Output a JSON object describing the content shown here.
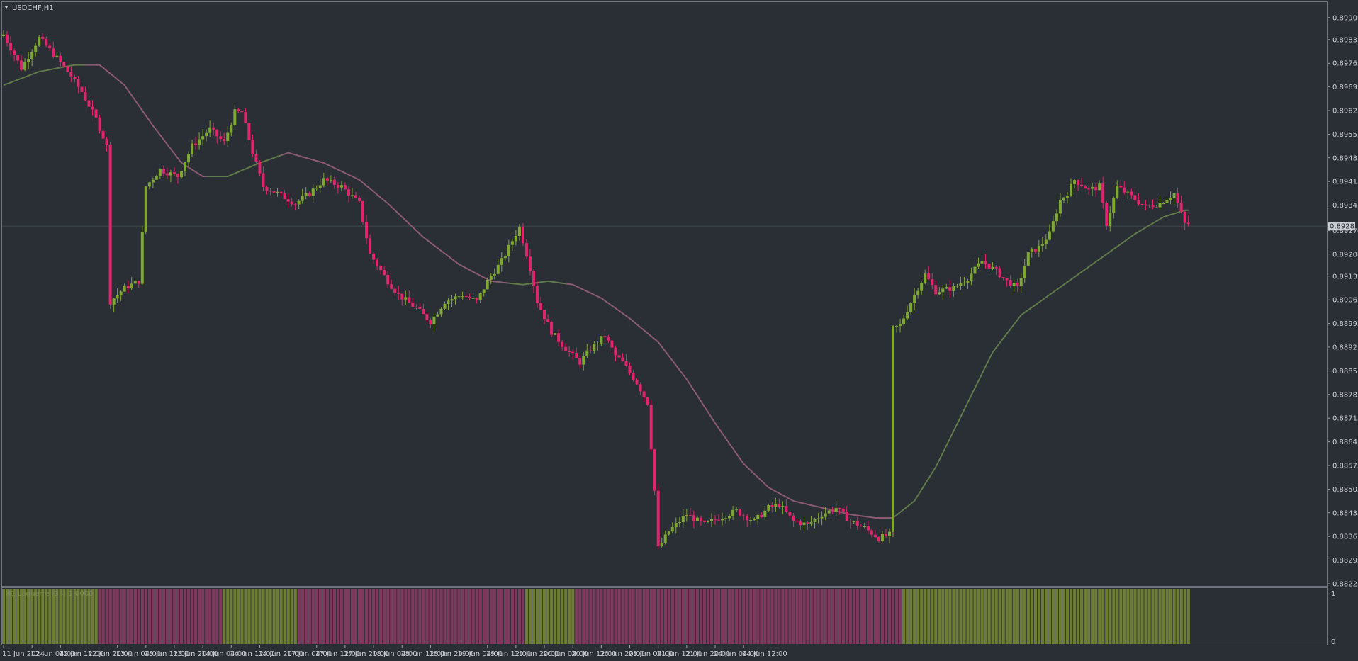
{
  "chart_data": {
    "type": "candlestick",
    "symbol_label": "USDCHF,H1",
    "timeframe": "H1",
    "y_axis": {
      "ticks": [
        "0.89900",
        "0.89835",
        "0.89765",
        "0.89695",
        "0.89625",
        "0.89555",
        "0.89485",
        "0.89415",
        "0.89345",
        "0.89270",
        "0.89200",
        "0.89135",
        "0.89065",
        "0.88995",
        "0.88925",
        "0.88855",
        "0.88785",
        "0.88715",
        "0.88645",
        "0.88575",
        "0.88505",
        "0.88435",
        "0.88365",
        "0.88295",
        "0.88225"
      ],
      "ylim": [
        0.88225,
        0.8991
      ]
    },
    "x_axis": {
      "ticks": [
        "11 Jun 2024",
        "12 Jun 04:00",
        "12 Jun 12:00",
        "12 Jun 20:00",
        "13 Jun 04:00",
        "13 Jun 12:00",
        "13 Jun 20:00",
        "14 Jun 04:00",
        "14 Jun 12:00",
        "14 Jun 20:00",
        "17 Jun 04:00",
        "17 Jun 12:00",
        "17 Jun 20:00",
        "18 Jun 04:00",
        "18 Jun 12:00",
        "18 Jun 20:00",
        "19 Jun 04:00",
        "19 Jun 12:00",
        "19 Jun 20:00",
        "20 Jun 04:00",
        "20 Jun 12:00",
        "20 Jun 20:00",
        "21 Jun 04:00",
        "21 Jun 12:00",
        "21 Jun 20:00",
        "24 Jun 04:00",
        "24 Jun 12:00"
      ]
    },
    "current_price": "0.89283",
    "colors": {
      "background": "#2a2e35",
      "bull": "#7fa832",
      "bear": "#e0256e",
      "ma_up": "#5f7a4a",
      "ma_down": "#8a5a72",
      "hist_up": "#6e7d35",
      "hist_down": "#7e3a5e",
      "axis_text": "#c8ccd2"
    },
    "anchors": [
      {
        "b": 0,
        "p": 0.8985
      },
      {
        "b": 5,
        "p": 0.8975
      },
      {
        "b": 10,
        "p": 0.8984
      },
      {
        "b": 15,
        "p": 0.8978
      },
      {
        "b": 18,
        "p": 0.8974
      },
      {
        "b": 22,
        "p": 0.8968
      },
      {
        "b": 26,
        "p": 0.896
      },
      {
        "b": 29,
        "p": 0.8952
      },
      {
        "b": 30,
        "p": 0.8906
      },
      {
        "b": 34,
        "p": 0.891
      },
      {
        "b": 38,
        "p": 0.8912
      },
      {
        "b": 40,
        "p": 0.894
      },
      {
        "b": 44,
        "p": 0.8945
      },
      {
        "b": 49,
        "p": 0.8943
      },
      {
        "b": 53,
        "p": 0.8952
      },
      {
        "b": 58,
        "p": 0.8957
      },
      {
        "b": 62,
        "p": 0.8953
      },
      {
        "b": 65,
        "p": 0.8962
      },
      {
        "b": 67,
        "p": 0.8962
      },
      {
        "b": 70,
        "p": 0.895
      },
      {
        "b": 73,
        "p": 0.894
      },
      {
        "b": 77,
        "p": 0.8938
      },
      {
        "b": 82,
        "p": 0.8935
      },
      {
        "b": 86,
        "p": 0.8938
      },
      {
        "b": 90,
        "p": 0.8942
      },
      {
        "b": 95,
        "p": 0.894
      },
      {
        "b": 100,
        "p": 0.8935
      },
      {
        "b": 103,
        "p": 0.892
      },
      {
        "b": 108,
        "p": 0.8912
      },
      {
        "b": 111,
        "p": 0.8908
      },
      {
        "b": 116,
        "p": 0.8904
      },
      {
        "b": 120,
        "p": 0.89
      },
      {
        "b": 124,
        "p": 0.8906
      },
      {
        "b": 129,
        "p": 0.8908
      },
      {
        "b": 133,
        "p": 0.8906
      },
      {
        "b": 136,
        "p": 0.8912
      },
      {
        "b": 140,
        "p": 0.8918
      },
      {
        "b": 145,
        "p": 0.8928
      },
      {
        "b": 148,
        "p": 0.8916
      },
      {
        "b": 150,
        "p": 0.8906
      },
      {
        "b": 154,
        "p": 0.8897
      },
      {
        "b": 158,
        "p": 0.8892
      },
      {
        "b": 162,
        "p": 0.8888
      },
      {
        "b": 165,
        "p": 0.8892
      },
      {
        "b": 169,
        "p": 0.8896
      },
      {
        "b": 172,
        "p": 0.889
      },
      {
        "b": 174,
        "p": 0.8888
      },
      {
        "b": 178,
        "p": 0.8882
      },
      {
        "b": 181,
        "p": 0.8876
      },
      {
        "b": 183,
        "p": 0.885
      },
      {
        "b": 184,
        "p": 0.8833
      },
      {
        "b": 187,
        "p": 0.8838
      },
      {
        "b": 192,
        "p": 0.8843
      },
      {
        "b": 197,
        "p": 0.884
      },
      {
        "b": 201,
        "p": 0.8842
      },
      {
        "b": 206,
        "p": 0.8844
      },
      {
        "b": 211,
        "p": 0.8841
      },
      {
        "b": 215,
        "p": 0.8845
      },
      {
        "b": 218,
        "p": 0.8846
      },
      {
        "b": 222,
        "p": 0.8841
      },
      {
        "b": 226,
        "p": 0.884
      },
      {
        "b": 230,
        "p": 0.8843
      },
      {
        "b": 234,
        "p": 0.8845
      },
      {
        "b": 238,
        "p": 0.8841
      },
      {
        "b": 242,
        "p": 0.8839
      },
      {
        "b": 246,
        "p": 0.8836
      },
      {
        "b": 249,
        "p": 0.8837
      },
      {
        "b": 250,
        "p": 0.8898
      },
      {
        "b": 252,
        "p": 0.8899
      },
      {
        "b": 256,
        "p": 0.8908
      },
      {
        "b": 259,
        "p": 0.8914
      },
      {
        "b": 262,
        "p": 0.8909
      },
      {
        "b": 267,
        "p": 0.891
      },
      {
        "b": 271,
        "p": 0.8913
      },
      {
        "b": 275,
        "p": 0.8918
      },
      {
        "b": 279,
        "p": 0.8915
      },
      {
        "b": 282,
        "p": 0.8912
      },
      {
        "b": 285,
        "p": 0.891
      },
      {
        "b": 288,
        "p": 0.892
      },
      {
        "b": 291,
        "p": 0.8922
      },
      {
        "b": 294,
        "p": 0.8926
      },
      {
        "b": 297,
        "p": 0.8936
      },
      {
        "b": 299,
        "p": 0.8938
      },
      {
        "b": 301,
        "p": 0.8942
      },
      {
        "b": 305,
        "p": 0.8939
      },
      {
        "b": 308,
        "p": 0.894
      },
      {
        "b": 310,
        "p": 0.8929
      },
      {
        "b": 313,
        "p": 0.894
      },
      {
        "b": 317,
        "p": 0.8937
      },
      {
        "b": 321,
        "p": 0.8934
      },
      {
        "b": 325,
        "p": 0.8935
      },
      {
        "b": 329,
        "p": 0.8938
      },
      {
        "b": 332,
        "p": 0.8929
      }
    ],
    "ma_anchors": [
      {
        "b": 0,
        "p": 0.897
      },
      {
        "b": 10,
        "p": 0.8974
      },
      {
        "b": 20,
        "p": 0.8976
      },
      {
        "b": 27,
        "p": 0.8976
      },
      {
        "b": 34,
        "p": 0.897
      },
      {
        "b": 42,
        "p": 0.8958
      },
      {
        "b": 50,
        "p": 0.8947
      },
      {
        "b": 56,
        "p": 0.8943
      },
      {
        "b": 63,
        "p": 0.8943
      },
      {
        "b": 72,
        "p": 0.8947
      },
      {
        "b": 80,
        "p": 0.895
      },
      {
        "b": 90,
        "p": 0.8947
      },
      {
        "b": 100,
        "p": 0.8942
      },
      {
        "b": 108,
        "p": 0.8935
      },
      {
        "b": 118,
        "p": 0.8925
      },
      {
        "b": 128,
        "p": 0.8917
      },
      {
        "b": 137,
        "p": 0.8912
      },
      {
        "b": 146,
        "p": 0.8911
      },
      {
        "b": 153,
        "p": 0.8912
      },
      {
        "b": 160,
        "p": 0.8911
      },
      {
        "b": 168,
        "p": 0.8907
      },
      {
        "b": 176,
        "p": 0.8901
      },
      {
        "b": 184,
        "p": 0.8894
      },
      {
        "b": 192,
        "p": 0.8883
      },
      {
        "b": 200,
        "p": 0.887
      },
      {
        "b": 208,
        "p": 0.8858
      },
      {
        "b": 215,
        "p": 0.8851
      },
      {
        "b": 222,
        "p": 0.8847
      },
      {
        "b": 230,
        "p": 0.8845
      },
      {
        "b": 238,
        "p": 0.8843
      },
      {
        "b": 245,
        "p": 0.8842
      },
      {
        "b": 250,
        "p": 0.8842
      },
      {
        "b": 256,
        "p": 0.8847
      },
      {
        "b": 262,
        "p": 0.8857
      },
      {
        "b": 270,
        "p": 0.8874
      },
      {
        "b": 278,
        "p": 0.8891
      },
      {
        "b": 286,
        "p": 0.8902
      },
      {
        "b": 294,
        "p": 0.8908
      },
      {
        "b": 302,
        "p": 0.8914
      },
      {
        "b": 310,
        "p": 0.892
      },
      {
        "b": 318,
        "p": 0.8926
      },
      {
        "b": 326,
        "p": 0.8931
      },
      {
        "b": 332,
        "p": 0.8933
      }
    ],
    "ma_color_switch_bars": [
      {
        "from": 0,
        "to": 23,
        "dir": "up"
      },
      {
        "from": 23,
        "to": 57,
        "dir": "down"
      },
      {
        "from": 57,
        "to": 78,
        "dir": "up"
      },
      {
        "from": 78,
        "to": 142,
        "dir": "down"
      },
      {
        "from": 142,
        "to": 158,
        "dir": "up"
      },
      {
        "from": 158,
        "to": 250,
        "dir": "down"
      },
      {
        "from": 250,
        "to": 333,
        "dir": "up"
      }
    ],
    "indicator": {
      "label": "H1 Laguerre (34) 1.0000",
      "ylim_labels": [
        "1",
        "0"
      ],
      "segments": [
        {
          "from": 0,
          "to": 27,
          "dir": "up"
        },
        {
          "from": 27,
          "to": 62,
          "dir": "down"
        },
        {
          "from": 62,
          "to": 83,
          "dir": "up"
        },
        {
          "from": 83,
          "to": 147,
          "dir": "down"
        },
        {
          "from": 147,
          "to": 161,
          "dir": "up"
        },
        {
          "from": 161,
          "to": 253,
          "dir": "down"
        },
        {
          "from": 253,
          "to": 334,
          "dir": "up"
        }
      ]
    },
    "bar_count": 334,
    "grid": false
  }
}
